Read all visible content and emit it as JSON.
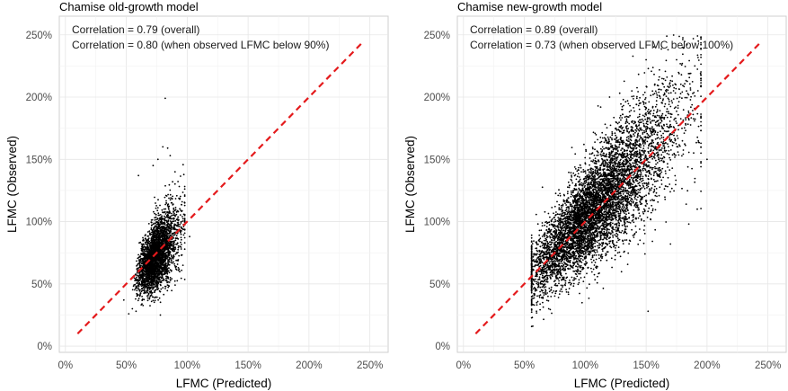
{
  "chart_data": [
    {
      "type": "scatter",
      "title": "Chamise old-growth model",
      "xlabel": "LFMC (Predicted)",
      "ylabel": "LFMC (Observed)",
      "xlim": [
        -5,
        265
      ],
      "ylim": [
        -5,
        265
      ],
      "x_ticks": [
        0,
        50,
        100,
        150,
        200,
        250
      ],
      "y_ticks": [
        0,
        50,
        100,
        150,
        200,
        250
      ],
      "x_tick_labels": [
        "0%",
        "50%",
        "100%",
        "150%",
        "200%",
        "250%"
      ],
      "y_tick_labels": [
        "0%",
        "50%",
        "100%",
        "150%",
        "200%",
        "250%"
      ],
      "annotations": [
        "Correlation = 0.79 (overall)",
        "Correlation = 0.80 (when observed LFMC below 90%)"
      ],
      "reference_line": {
        "style": "dashed",
        "color": "#e41a1c",
        "points": [
          [
            10,
            10
          ],
          [
            245,
            245
          ]
        ]
      },
      "grid": true,
      "point_color": "#000000",
      "cloud": {
        "n": 3200,
        "x_range": [
          48,
          98
        ],
        "x_center": 70,
        "y_center": 68,
        "y_spread": 12
      },
      "points": [
        [
          82,
          199
        ],
        [
          80,
          160
        ],
        [
          84,
          159
        ],
        [
          60,
          137
        ],
        [
          72,
          145
        ],
        [
          102,
          88
        ],
        [
          98,
          83
        ],
        [
          95,
          100
        ],
        [
          96,
          104
        ],
        [
          48,
          37
        ],
        [
          55,
          30
        ],
        [
          52,
          26
        ],
        [
          58,
          28
        ],
        [
          88,
          132
        ],
        [
          90,
          140
        ],
        [
          76,
          150
        ],
        [
          86,
          153
        ]
      ]
    },
    {
      "type": "scatter",
      "title": "Chamise new-growth model",
      "xlabel": "LFMC (Predicted)",
      "ylabel": "LFMC (Observed)",
      "xlim": [
        -5,
        265
      ],
      "ylim": [
        -5,
        265
      ],
      "x_ticks": [
        0,
        50,
        100,
        150,
        200,
        250
      ],
      "y_ticks": [
        0,
        50,
        100,
        150,
        200,
        250
      ],
      "x_tick_labels": [
        "0%",
        "50%",
        "100%",
        "150%",
        "200%",
        "250%"
      ],
      "y_tick_labels": [
        "0%",
        "50%",
        "100%",
        "150%",
        "200%",
        "250%"
      ],
      "annotations": [
        "Correlation = 0.89 (overall)",
        "Correlation = 0.73 (when observed LFMC below 100%)"
      ],
      "reference_line": {
        "style": "dashed",
        "color": "#e41a1c",
        "points": [
          [
            10,
            10
          ],
          [
            245,
            245
          ]
        ]
      },
      "grid": true,
      "point_color": "#000000",
      "cloud": {
        "n": 6500,
        "x_range": [
          56,
          195
        ],
        "x_center": 90,
        "y_center": 92,
        "y_spread": 22
      },
      "points": [
        [
          57,
          16
        ],
        [
          180,
          240
        ],
        [
          168,
          238
        ],
        [
          150,
          230
        ],
        [
          190,
          225
        ],
        [
          195,
          155
        ],
        [
          192,
          110
        ],
        [
          185,
          98
        ],
        [
          200,
          150
        ],
        [
          65,
          35
        ],
        [
          70,
          30
        ],
        [
          60,
          28
        ],
        [
          145,
          85
        ],
        [
          170,
          82
        ],
        [
          120,
          200
        ],
        [
          175,
          230
        ]
      ]
    }
  ]
}
